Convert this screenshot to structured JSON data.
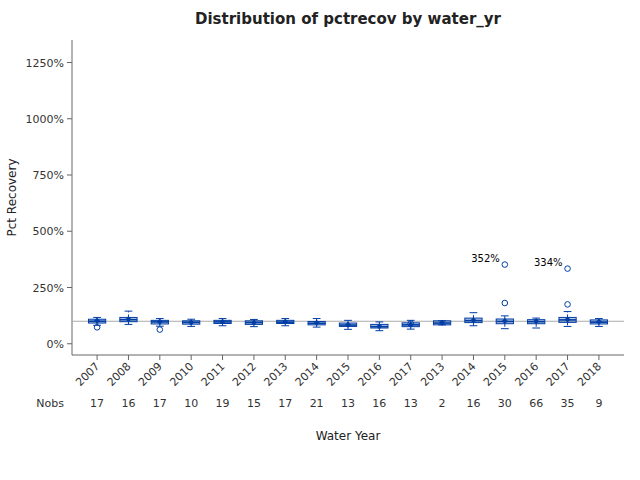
{
  "chart_data": {
    "type": "box",
    "title": "Distribution of pctrecov by water_yr",
    "xlabel": "Water Year",
    "ylabel": "Pct Recovery",
    "categories": [
      "2007",
      "2008",
      "2009",
      "2010",
      "2011",
      "2012",
      "2013",
      "2014",
      "2015",
      "2016",
      "2017",
      "2013",
      "2014",
      "2015",
      "2016",
      "2017",
      "2018"
    ],
    "nobs_label": "Nobs",
    "nobs": [
      17,
      16,
      17,
      10,
      19,
      15,
      17,
      21,
      13,
      16,
      13,
      2,
      16,
      30,
      66,
      35,
      9
    ],
    "medians": [
      100,
      107,
      97,
      95,
      97,
      94,
      96,
      91,
      83,
      76,
      84,
      92,
      103,
      99,
      98,
      106,
      96
    ],
    "q1": [
      92,
      98,
      88,
      87,
      90,
      86,
      90,
      84,
      77,
      70,
      76,
      84,
      94,
      89,
      89,
      95,
      88
    ],
    "q3": [
      109,
      117,
      104,
      102,
      104,
      102,
      104,
      99,
      92,
      86,
      93,
      102,
      114,
      110,
      107,
      117,
      106
    ],
    "whislo": [
      82,
      86,
      78,
      77,
      80,
      76,
      80,
      74,
      64,
      58,
      65,
      84,
      80,
      67,
      70,
      77,
      77
    ],
    "whishi": [
      117,
      145,
      112,
      109,
      112,
      108,
      112,
      112,
      104,
      97,
      104,
      102,
      138,
      124,
      114,
      143,
      112
    ],
    "means": [
      102,
      109,
      98,
      95,
      98,
      95,
      98,
      93,
      85,
      78,
      85,
      93,
      105,
      101,
      100,
      108,
      98
    ],
    "fliers_low": [
      [
        73
      ],
      [],
      [
        63
      ],
      [],
      [],
      [],
      [],
      [],
      [],
      [],
      [
        90
      ],
      [],
      [],
      [
        181
      ],
      [],
      [
        175
      ],
      []
    ],
    "fliers_high": [
      [],
      [],
      [],
      [],
      [],
      [],
      [],
      [],
      [],
      [],
      [],
      [],
      [],
      [
        352
      ],
      [],
      [
        334
      ],
      []
    ],
    "fliers_high_value_labels": [
      [],
      [],
      [],
      [],
      [],
      [],
      [],
      [],
      [],
      [],
      [],
      [],
      [],
      [
        "352%"
      ],
      [],
      [
        "334%"
      ],
      []
    ],
    "hline": 100,
    "color": "#003da5",
    "ylim": [
      -50,
      1350
    ],
    "yticks": [
      {
        "value": 0,
        "label": "0%"
      },
      {
        "value": 250,
        "label": "250%"
      },
      {
        "value": 500,
        "label": "500%"
      },
      {
        "value": 750,
        "label": "750%"
      },
      {
        "value": 1000,
        "label": "1000%"
      },
      {
        "value": 1250,
        "label": "1250%"
      }
    ],
    "grid": false
  }
}
